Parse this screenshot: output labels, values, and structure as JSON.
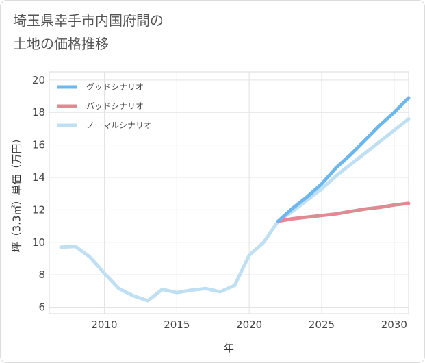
{
  "title_line1": "埼玉県幸手市内国府間の",
  "title_line2": "土地の価格推移",
  "chart_data": {
    "type": "line",
    "xlabel": "年",
    "ylabel": "坪（3.3㎡）単価（万円）",
    "xlim": [
      2006.2,
      2031
    ],
    "ylim": [
      5.6,
      20.5
    ],
    "x_ticks": [
      2010,
      2015,
      2020,
      2025,
      2030
    ],
    "y_ticks": [
      6,
      8,
      10,
      12,
      14,
      16,
      18,
      20
    ],
    "grid": true,
    "legend_position": "top-left",
    "series": [
      {
        "name": "グッドシナリオ",
        "color": "#6cb8ee",
        "x": [
          2022,
          2023,
          2024,
          2025,
          2026,
          2027,
          2028,
          2029,
          2030,
          2031
        ],
        "y": [
          11.3,
          12.1,
          12.8,
          13.6,
          14.6,
          15.4,
          16.3,
          17.2,
          18.0,
          18.9
        ]
      },
      {
        "name": "バッドシナリオ",
        "color": "#e08a93",
        "x": [
          2022,
          2023,
          2024,
          2025,
          2026,
          2027,
          2028,
          2029,
          2030,
          2031
        ],
        "y": [
          11.3,
          11.45,
          11.55,
          11.65,
          11.75,
          11.9,
          12.05,
          12.15,
          12.3,
          12.4
        ]
      },
      {
        "name": "ノーマルシナリオ",
        "color": "#bfe0f2",
        "x": [
          2007,
          2008,
          2009,
          2010,
          2011,
          2012,
          2013,
          2014,
          2015,
          2016,
          2017,
          2018,
          2019,
          2020,
          2021,
          2022,
          2023,
          2024,
          2025,
          2026,
          2027,
          2028,
          2029,
          2030,
          2031
        ],
        "y": [
          9.7,
          9.75,
          9.1,
          8.1,
          7.15,
          6.7,
          6.4,
          7.1,
          6.9,
          7.05,
          7.15,
          6.95,
          7.35,
          9.2,
          10.0,
          11.3,
          11.9,
          12.6,
          13.3,
          14.1,
          14.8,
          15.5,
          16.2,
          16.9,
          17.6
        ]
      }
    ]
  }
}
